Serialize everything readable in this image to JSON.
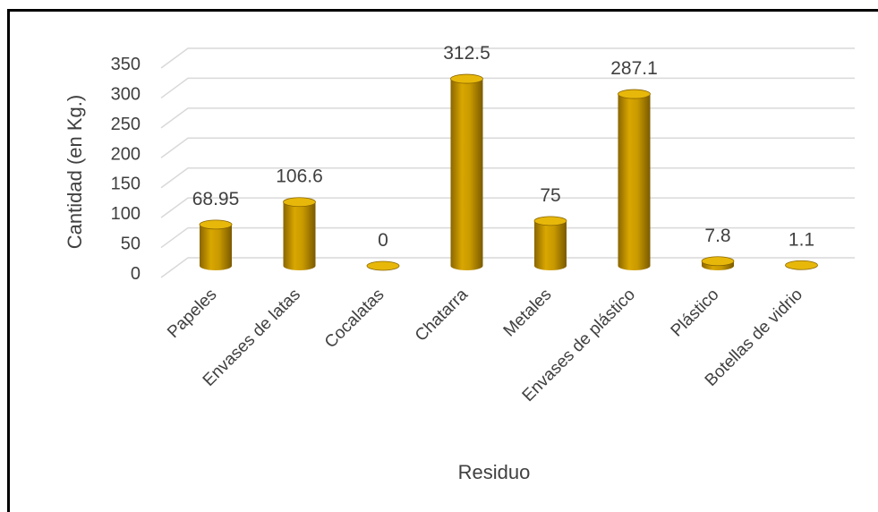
{
  "chart_data": {
    "type": "bar",
    "style": "3d-cylinder",
    "title": "",
    "xlabel": "Residuo",
    "ylabel": "Cantidad (en Kg.)",
    "ylim": [
      0,
      350
    ],
    "yticks": [
      "0",
      "50",
      "100",
      "150",
      "200",
      "250",
      "300",
      "350"
    ],
    "categories": [
      "Papeles",
      "Envases de latas",
      "Cocalatas",
      "Chatarra",
      "Metales",
      "Envases de plástico",
      "Plástico",
      "Botellas de vidrio"
    ],
    "values": [
      68.95,
      106.6,
      0,
      312.5,
      75,
      287.1,
      7.8,
      1.1
    ],
    "data_labels": [
      "68.95",
      "106.6",
      "0",
      "312.5",
      "75",
      "287.1",
      "7.8",
      "1.1"
    ],
    "grid": true,
    "legend": "none",
    "bar_color": "#C99A00",
    "bar_highlight": "#E7B80A",
    "bar_shadow": "#8A6500",
    "grid_color": "#D9D9D9"
  }
}
